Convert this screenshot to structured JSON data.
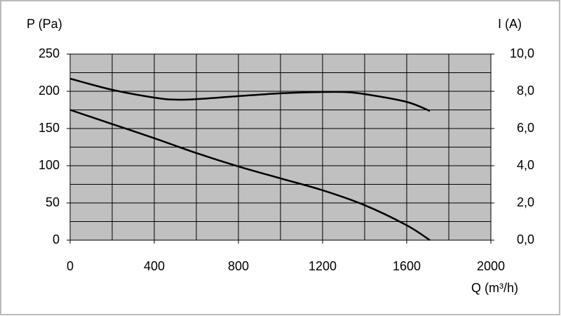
{
  "chart_data": {
    "type": "line",
    "y_label": "P (Pa)",
    "y2_label": "I (A)",
    "x_label": "Q (m³/h)",
    "xlim": [
      0,
      2000
    ],
    "xticks": [
      0,
      400,
      800,
      1200,
      1600,
      2000
    ],
    "xminorticks": [
      200,
      600,
      1000,
      1400,
      1800
    ],
    "ylim": [
      0,
      250
    ],
    "yticks": [
      0,
      50,
      100,
      150,
      200,
      250
    ],
    "yminorticks": [
      25,
      75,
      125,
      175,
      225
    ],
    "y2lim": [
      0,
      10
    ],
    "y2ticks": [
      {
        "value": 0,
        "label": "0,0"
      },
      {
        "value": 2,
        "label": "2,0"
      },
      {
        "value": 4,
        "label": "4,0"
      },
      {
        "value": 6,
        "label": "6,0"
      },
      {
        "value": 8,
        "label": "8,0"
      },
      {
        "value": 10,
        "label": "10,0"
      }
    ],
    "grid": true,
    "background": "#c0c0c0",
    "series": [
      {
        "name": "P",
        "color": "#000000",
        "axis": "y",
        "x": [
          0,
          200,
          400,
          600,
          800,
          1000,
          1200,
          1400,
          1600,
          1710
        ],
        "values": [
          175,
          156,
          137,
          117,
          99,
          83,
          67,
          47,
          20,
          0
        ]
      },
      {
        "name": "I",
        "color": "#000000",
        "axis": "y2",
        "x": [
          0,
          200,
          400,
          500,
          600,
          800,
          1000,
          1200,
          1300,
          1400,
          1600,
          1710
        ],
        "values": [
          8.68,
          8.08,
          7.66,
          7.55,
          7.58,
          7.74,
          7.89,
          7.96,
          7.96,
          7.85,
          7.43,
          6.94
        ]
      }
    ]
  }
}
